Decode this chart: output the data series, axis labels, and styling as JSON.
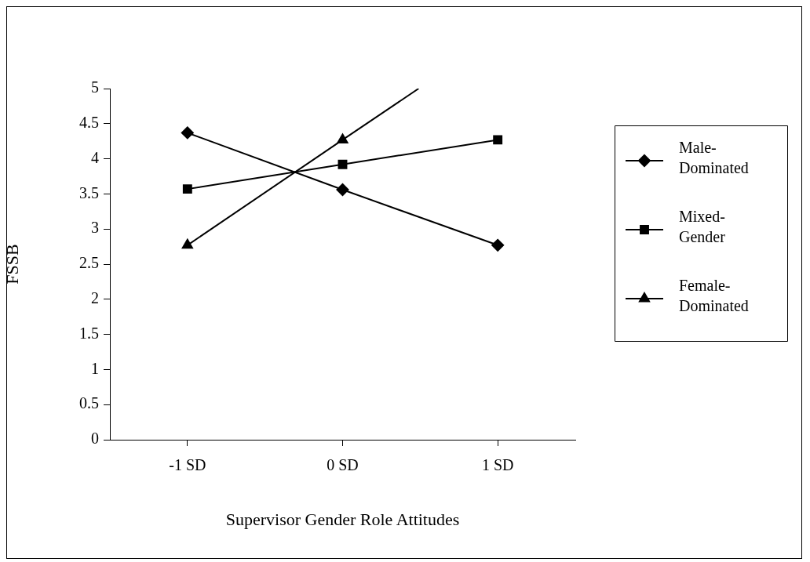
{
  "chart_data": {
    "type": "line",
    "xlabel": "Supervisor Gender Role Attitudes",
    "ylabel": "FSSB",
    "x": [
      -1,
      0,
      1
    ],
    "xlim": [
      -1.5,
      1.5
    ],
    "xticks": [
      {
        "value": -1,
        "label": "-1 SD"
      },
      {
        "value": 0,
        "label": "0 SD"
      },
      {
        "value": 1,
        "label": "1 SD"
      }
    ],
    "ylim": [
      0,
      5
    ],
    "yticks": [
      0,
      0.5,
      1,
      1.5,
      2,
      2.5,
      3,
      3.5,
      4,
      4.5,
      5
    ],
    "grid": false,
    "legend": "right",
    "line_style": "solid",
    "series": [
      {
        "name": "Male-Dominated",
        "color": "#000000",
        "marker": "diamond",
        "values": [
          4.37,
          3.56,
          2.77
        ]
      },
      {
        "name": "Mixed-Gender",
        "color": "#000000",
        "marker": "square",
        "values": [
          3.57,
          3.92,
          4.27
        ]
      },
      {
        "name": "Female-Dominated",
        "color": "#000000",
        "marker": "triangle",
        "x": [
          -1,
          0,
          0.49
        ],
        "values": [
          2.77,
          4.27,
          5
        ]
      }
    ]
  }
}
